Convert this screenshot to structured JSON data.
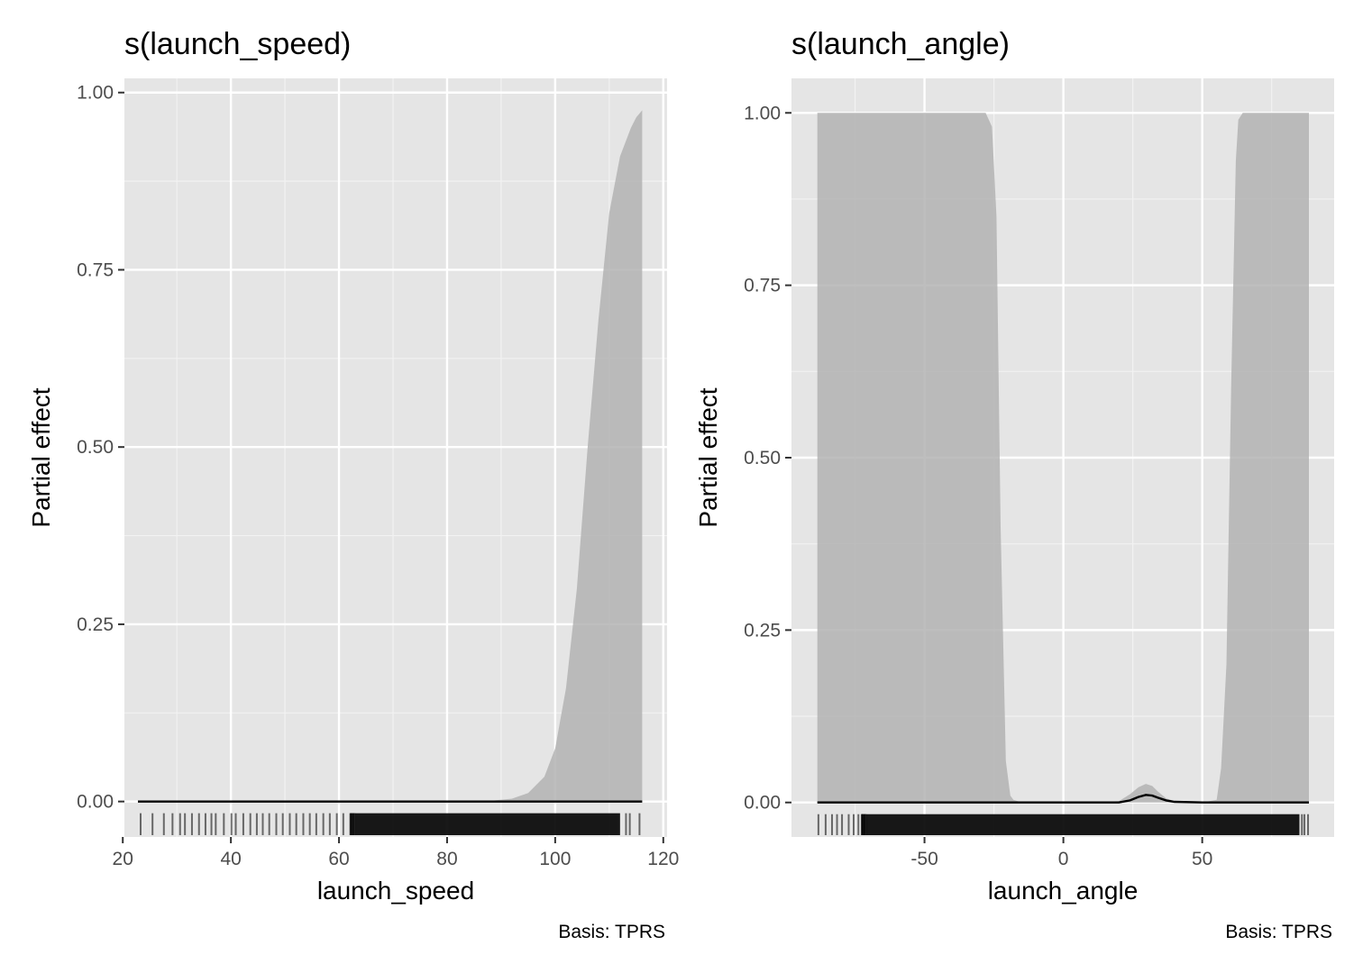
{
  "chart_data": [
    {
      "type": "area",
      "title": "s(launch_speed)",
      "xlabel": "launch_speed",
      "ylabel": "Partial effect",
      "caption": "Basis: TPRS",
      "xlim": [
        20.3,
        120.7
      ],
      "ylim": [
        -0.05,
        1.02
      ],
      "x_ticks": [
        20,
        40,
        60,
        80,
        100,
        120
      ],
      "x_tick_labels": [
        "20",
        "40",
        "60",
        "80",
        "100",
        "120"
      ],
      "y_ticks": [
        0.0,
        0.25,
        0.5,
        0.75,
        1.0
      ],
      "y_tick_labels": [
        "0.00",
        "0.25",
        "0.50",
        "0.75",
        "1.00"
      ],
      "grid": true,
      "band_color": "#b3b3b3",
      "line_color": "#000000",
      "series": [
        {
          "x": [
            22.8,
            80,
            88,
            92,
            95,
            98,
            100,
            102,
            104,
            106,
            108,
            110,
            112,
            114,
            115,
            116.1
          ],
          "estimate": [
            0,
            0,
            0,
            0,
            0,
            0,
            0,
            0,
            0,
            0,
            0,
            0,
            0,
            0,
            0,
            0
          ],
          "lower": [
            0,
            0,
            0,
            0,
            0,
            0,
            0,
            0,
            0,
            0,
            0,
            0,
            0,
            0,
            0,
            0
          ],
          "upper": [
            0,
            0,
            0.001,
            0.004,
            0.012,
            0.035,
            0.075,
            0.16,
            0.3,
            0.5,
            0.68,
            0.83,
            0.91,
            0.95,
            0.965,
            0.975
          ]
        }
      ],
      "rug": {
        "dense_range": [
          63,
          112
        ],
        "sparse_values": [
          23.3,
          25.5,
          27.6,
          29.2,
          30.6,
          31.5,
          32.8,
          34.1,
          35.3,
          36.4,
          37.2,
          38.7,
          40.1,
          40.9,
          42.3,
          43.6,
          44.8,
          45.9,
          47.1,
          48.4,
          49.6,
          50.9,
          52.1,
          53.4,
          54.6,
          55.8,
          57.1,
          58.3,
          59.6,
          60.8,
          62.1,
          113.1,
          113.8,
          115.6
        ]
      }
    },
    {
      "type": "area",
      "title": "s(launch_angle)",
      "xlabel": "launch_angle",
      "ylabel": "Partial effect",
      "caption": "Basis: TPRS",
      "xlim": [
        -97.9,
        97.5
      ],
      "ylim": [
        -0.05,
        1.05
      ],
      "x_ticks": [
        -50,
        0,
        50
      ],
      "x_tick_labels": [
        "-50",
        "0",
        "50"
      ],
      "y_ticks": [
        0.0,
        0.25,
        0.5,
        0.75,
        1.0
      ],
      "y_tick_labels": [
        "0.00",
        "0.25",
        "0.50",
        "0.75",
        "1.00"
      ],
      "grid": true,
      "band_color": "#b3b3b3",
      "line_color": "#000000",
      "series": [
        {
          "x": [
            -88.6,
            -28,
            -25.7,
            -24.1,
            -22.6,
            -20.7,
            -19.1,
            -18,
            -15,
            10,
            20,
            24,
            27,
            29.7,
            32,
            34,
            37,
            40,
            50,
            55.2,
            56.8,
            58.7,
            60.4,
            62.1,
            63,
            64.6,
            70,
            88.4
          ],
          "estimate": [
            0,
            0,
            0,
            0,
            0,
            0,
            0,
            0,
            0,
            0,
            0,
            0.003,
            0.008,
            0.011,
            0.01,
            0.007,
            0.003,
            0.001,
            0,
            0,
            0,
            0,
            0,
            0,
            0,
            0,
            0,
            0
          ],
          "lower": [
            0,
            0,
            0,
            0,
            0,
            0,
            0,
            0,
            0,
            0,
            0,
            0,
            0,
            0,
            0,
            0,
            0,
            0,
            0,
            0,
            0,
            0,
            0,
            0,
            0,
            0,
            0,
            0
          ],
          "upper": [
            1.0,
            1.0,
            0.98,
            0.85,
            0.4,
            0.06,
            0.01,
            0.004,
            0.0,
            0.0,
            0.002,
            0.012,
            0.022,
            0.027,
            0.024,
            0.016,
            0.006,
            0.002,
            0.0,
            0.004,
            0.05,
            0.2,
            0.6,
            0.93,
            0.99,
            1.0,
            1.0,
            1.0
          ]
        }
      ],
      "rug": {
        "dense_range": [
          -71,
          85
        ],
        "sparse_values": [
          -88.2,
          -85.6,
          -83.3,
          -81.5,
          -79.7,
          -77.3,
          -75.5,
          -73.8,
          -72.6,
          85.9,
          86.8,
          88.1
        ]
      }
    }
  ]
}
